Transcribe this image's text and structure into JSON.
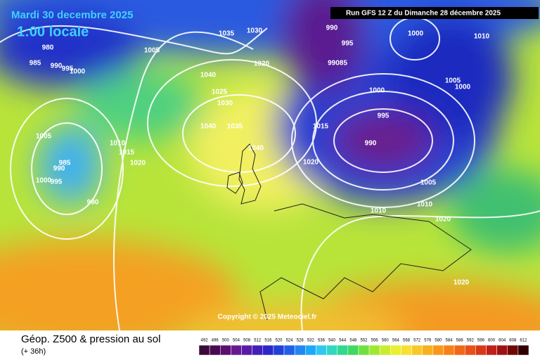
{
  "header": {
    "date": "Mardi 30 decembre 2025",
    "time": "1:00 locale",
    "run": "Run GFS 12 Z du Dimanche 28 décembre 2025"
  },
  "copyright": "Copyright © 2025 Meteociel.fr",
  "footer": {
    "title": "Géop. Z500 & pression au sol",
    "lead": "(+ 36h)"
  },
  "scale": [
    492,
    496,
    500,
    504,
    508,
    512,
    516,
    520,
    524,
    528,
    532,
    536,
    540,
    544,
    548,
    552,
    556,
    560,
    564,
    568,
    572,
    576,
    580,
    584,
    588,
    592,
    596,
    600,
    604,
    608,
    612
  ],
  "isobar_labels": [
    "980",
    "985",
    "990",
    "995",
    "1000",
    "1005",
    "1035",
    "1030",
    "1040",
    "1025",
    "1030",
    "1020",
    "1040",
    "1035",
    "1040",
    "1015",
    "1020",
    "990",
    "995",
    "99085",
    "1000",
    "995",
    "990",
    "1000",
    "1010",
    "1005",
    "1000",
    "1005",
    "1010",
    "1010",
    "1020",
    "1020",
    "1005",
    "985",
    "990",
    "1000",
    "995",
    "990",
    "1010",
    "1015",
    "1020"
  ]
}
